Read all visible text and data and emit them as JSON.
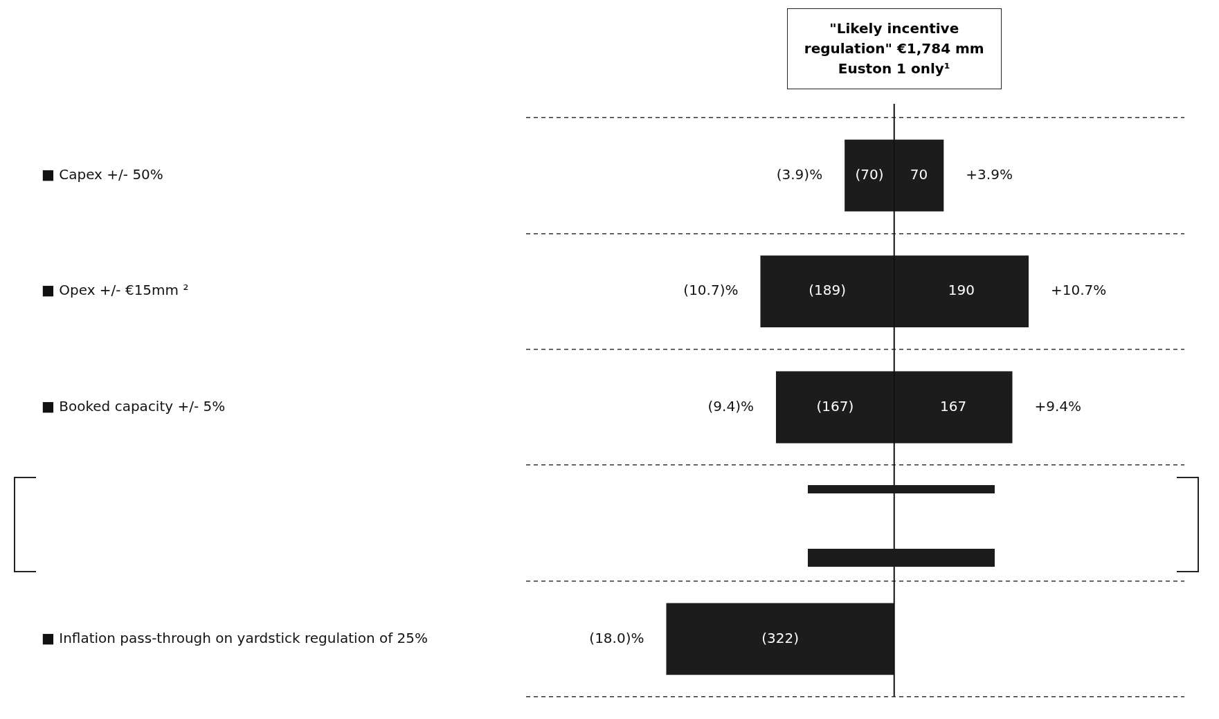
{
  "chart_data": {
    "type": "bar",
    "orientation": "horizontal",
    "categories": [
      "■ Capex +/- 50%",
      "■ Opex +/- €15mm ²",
      "■ Booked capacity +/- 5%",
      null,
      "■ Inflation pass-through on yardstick regulation of 25%"
    ],
    "series": [
      {
        "color": "#1c1c1c",
        "values": [
          -70,
          -189,
          -167,
          null,
          -322
        ],
        "value_labels": [
          "(70)",
          "(189)",
          "(167)",
          null,
          "(322)"
        ]
      },
      {
        "color": "#1c1c1c",
        "values": [
          70,
          190,
          167,
          null,
          null
        ],
        "value_labels": [
          "70",
          "190",
          "167",
          null,
          null
        ]
      }
    ],
    "stacked": true,
    "xlim": [
      -520,
      410
    ],
    "tick_labels": "y",
    "grid": "y",
    "legend": false,
    "ref_lines": [
      {
        "axis": "x",
        "value": 0,
        "label": "\"Likely incentive regulation\" €1,784 mm Euston 1 only¹"
      }
    ],
    "annotations": [
      {
        "text": "(3.9)%",
        "x": -70,
        "y": "■ Capex +/- 50%"
      },
      {
        "text": "+3.9%",
        "x": 70,
        "y": "■ Capex +/- 50%"
      },
      {
        "text": "(10.7)%",
        "x": -189,
        "y": "■ Opex +/- €15mm ²"
      },
      {
        "text": "+10.7%",
        "x": 190,
        "y": "■ Opex +/- €15mm ²"
      },
      {
        "text": "(9.4)%",
        "x": -167,
        "y": "■ Booked capacity +/- 5%"
      },
      {
        "text": "+9.4%",
        "x": 167,
        "y": "■ Booked capacity +/- 5%"
      },
      {
        "text": "(18.0)%",
        "x": -322,
        "y": "■ Inflation pass-through on yardstick regulation of 25%"
      }
    ]
  }
}
